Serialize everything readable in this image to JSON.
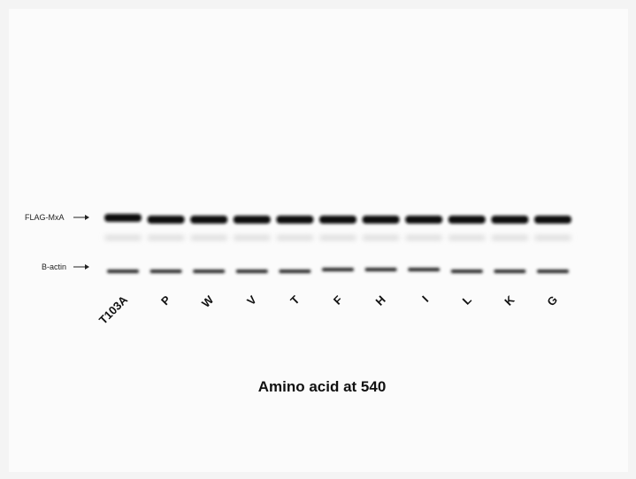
{
  "band_labels": {
    "flag": "FLAG-MxA",
    "actin": "B-actin"
  },
  "lanes": [
    "T103A",
    "P",
    "W",
    "V",
    "T",
    "F",
    "H",
    "I",
    "L",
    "K",
    "G"
  ],
  "x_label": "Amino acid at 540"
}
